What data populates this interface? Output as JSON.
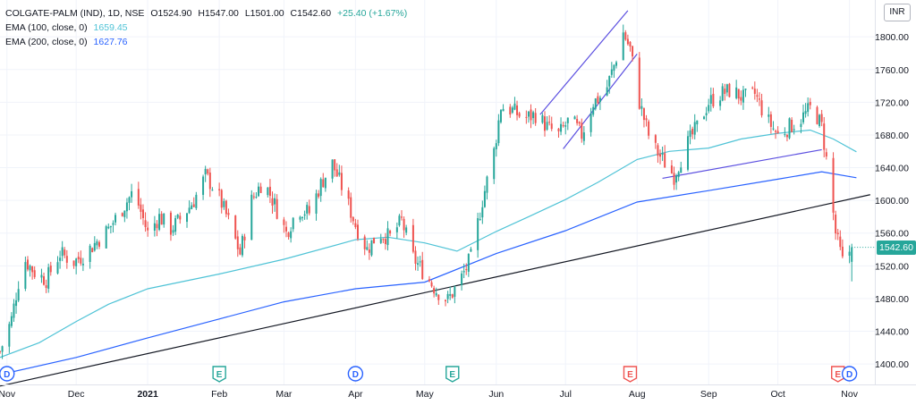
{
  "legend": {
    "symbol": "COLGATE-PALM (IND), 1D, NSE",
    "open": "O1524.90",
    "high": "H1547.00",
    "low": "L1501.00",
    "close": "C1542.60",
    "change": "+25.40 (+1.67%)",
    "ema100_label": "EMA (100, close, 0)",
    "ema100_value": "1659.45",
    "ema200_label": "EMA (200, close, 0)",
    "ema200_value": "1627.76"
  },
  "currency": "INR",
  "last_price": "1542.60",
  "colors": {
    "up": "#26a69a",
    "down": "#ef5350",
    "ema100": "#4fc3d6",
    "ema200": "#2962ff",
    "trendline": "#131722",
    "channel": "#5b4fe0"
  },
  "chart_data": {
    "type": "candlestick",
    "y_ticks": [
      1400,
      1440,
      1480,
      1520,
      1560,
      1600,
      1640,
      1680,
      1720,
      1760,
      1800
    ],
    "y_range": [
      1375,
      1845
    ],
    "x_range": [
      "2020-10-29",
      "2021-11-12"
    ],
    "x_ticks": [
      {
        "date": "2020-11-01",
        "label": "Nov"
      },
      {
        "date": "2020-12-01",
        "label": "Dec"
      },
      {
        "date": "2021-01-01",
        "label": "2021"
      },
      {
        "date": "2021-02-01",
        "label": "Feb"
      },
      {
        "date": "2021-03-01",
        "label": "Mar"
      },
      {
        "date": "2021-04-01",
        "label": "Apr"
      },
      {
        "date": "2021-05-01",
        "label": "May"
      },
      {
        "date": "2021-06-01",
        "label": "Jun"
      },
      {
        "date": "2021-07-01",
        "label": "Jul"
      },
      {
        "date": "2021-08-01",
        "label": "Aug"
      },
      {
        "date": "2021-09-01",
        "label": "Sep"
      },
      {
        "date": "2021-10-01",
        "label": "Oct"
      },
      {
        "date": "2021-11-01",
        "label": "Nov"
      }
    ],
    "close_path": [
      [
        "2020-10-29",
        1415
      ],
      [
        "2020-11-03",
        1455
      ],
      [
        "2020-11-08",
        1530
      ],
      [
        "2020-11-13",
        1512
      ],
      [
        "2020-11-18",
        1503
      ],
      [
        "2020-11-24",
        1535
      ],
      [
        "2020-11-30",
        1525
      ],
      [
        "2020-12-05",
        1535
      ],
      [
        "2020-12-10",
        1550
      ],
      [
        "2020-12-15",
        1565
      ],
      [
        "2020-12-21",
        1590
      ],
      [
        "2020-12-26",
        1612
      ],
      [
        "2021-01-01",
        1560
      ],
      [
        "2021-01-06",
        1580
      ],
      [
        "2021-01-11",
        1565
      ],
      [
        "2021-01-16",
        1580
      ],
      [
        "2021-01-21",
        1600
      ],
      [
        "2021-01-26",
        1630
      ],
      [
        "2021-01-31",
        1610
      ],
      [
        "2021-02-05",
        1575
      ],
      [
        "2021-02-10",
        1535
      ],
      [
        "2021-02-15",
        1600
      ],
      [
        "2021-02-20",
        1625
      ],
      [
        "2021-02-25",
        1595
      ],
      [
        "2021-03-02",
        1560
      ],
      [
        "2021-03-07",
        1590
      ],
      [
        "2021-03-12",
        1585
      ],
      [
        "2021-03-17",
        1620
      ],
      [
        "2021-03-22",
        1645
      ],
      [
        "2021-03-27",
        1610
      ],
      [
        "2021-04-01",
        1570
      ],
      [
        "2021-04-06",
        1540
      ],
      [
        "2021-04-11",
        1560
      ],
      [
        "2021-04-16",
        1555
      ],
      [
        "2021-04-21",
        1575
      ],
      [
        "2021-04-26",
        1530
      ],
      [
        "2021-05-01",
        1510
      ],
      [
        "2021-05-06",
        1490
      ],
      [
        "2021-05-11",
        1478
      ],
      [
        "2021-05-16",
        1500
      ],
      [
        "2021-05-21",
        1530
      ],
      [
        "2021-05-26",
        1600
      ],
      [
        "2021-05-31",
        1660
      ],
      [
        "2021-06-03",
        1715
      ],
      [
        "2021-06-08",
        1710
      ],
      [
        "2021-06-13",
        1700
      ],
      [
        "2021-06-18",
        1705
      ],
      [
        "2021-06-23",
        1690
      ],
      [
        "2021-06-28",
        1680
      ],
      [
        "2021-07-03",
        1700
      ],
      [
        "2021-07-08",
        1680
      ],
      [
        "2021-07-13",
        1720
      ],
      [
        "2021-07-18",
        1730
      ],
      [
        "2021-07-22",
        1765
      ],
      [
        "2021-07-26",
        1805
      ],
      [
        "2021-07-29",
        1785
      ],
      [
        "2021-08-02",
        1720
      ],
      [
        "2021-08-07",
        1670
      ],
      [
        "2021-08-12",
        1650
      ],
      [
        "2021-08-17",
        1630
      ],
      [
        "2021-08-22",
        1665
      ],
      [
        "2021-08-27",
        1690
      ],
      [
        "2021-09-01",
        1720
      ],
      [
        "2021-09-06",
        1730
      ],
      [
        "2021-09-11",
        1735
      ],
      [
        "2021-09-16",
        1725
      ],
      [
        "2021-09-21",
        1730
      ],
      [
        "2021-09-26",
        1700
      ],
      [
        "2021-10-01",
        1680
      ],
      [
        "2021-10-06",
        1690
      ],
      [
        "2021-10-11",
        1700
      ],
      [
        "2021-10-16",
        1715
      ],
      [
        "2021-10-20",
        1690
      ],
      [
        "2021-10-23",
        1630
      ],
      [
        "2021-10-26",
        1560
      ],
      [
        "2021-10-29",
        1525
      ],
      [
        "2021-11-02",
        1542.6
      ]
    ],
    "ema100": [
      [
        "2020-10-29",
        1408
      ],
      [
        "2020-11-15",
        1426
      ],
      [
        "2020-12-01",
        1452
      ],
      [
        "2020-12-15",
        1473
      ],
      [
        "2021-01-01",
        1492
      ],
      [
        "2021-02-01",
        1510
      ],
      [
        "2021-03-01",
        1528
      ],
      [
        "2021-04-01",
        1552
      ],
      [
        "2021-04-15",
        1555
      ],
      [
        "2021-05-01",
        1548
      ],
      [
        "2021-05-15",
        1538
      ],
      [
        "2021-06-01",
        1562
      ],
      [
        "2021-06-15",
        1580
      ],
      [
        "2021-07-01",
        1601
      ],
      [
        "2021-07-15",
        1622
      ],
      [
        "2021-08-01",
        1650
      ],
      [
        "2021-08-15",
        1660
      ],
      [
        "2021-09-01",
        1664
      ],
      [
        "2021-09-15",
        1675
      ],
      [
        "2021-10-01",
        1682
      ],
      [
        "2021-10-15",
        1686
      ],
      [
        "2021-10-25",
        1675
      ],
      [
        "2021-11-04",
        1659.45
      ]
    ],
    "ema200": [
      [
        "2020-10-29",
        1387
      ],
      [
        "2020-12-01",
        1408
      ],
      [
        "2021-01-01",
        1432
      ],
      [
        "2021-02-01",
        1455
      ],
      [
        "2021-03-01",
        1476
      ],
      [
        "2021-04-01",
        1492
      ],
      [
        "2021-05-01",
        1500
      ],
      [
        "2021-06-01",
        1535
      ],
      [
        "2021-07-01",
        1563
      ],
      [
        "2021-08-01",
        1598
      ],
      [
        "2021-09-01",
        1612
      ],
      [
        "2021-10-01",
        1626
      ],
      [
        "2021-10-20",
        1635
      ],
      [
        "2021-11-04",
        1627.76
      ]
    ],
    "drawings": [
      {
        "name": "long-term-trendline",
        "color": "#131722",
        "points": [
          [
            "2020-10-29",
            1373
          ],
          [
            "2021-11-10",
            1607
          ]
        ]
      },
      {
        "name": "channel-upper",
        "color": "#5b4fe0",
        "points": [
          [
            "2021-06-20",
            1705
          ],
          [
            "2021-07-28",
            1832
          ]
        ]
      },
      {
        "name": "channel-lower",
        "color": "#5b4fe0",
        "points": [
          [
            "2021-06-30",
            1663
          ],
          [
            "2021-08-01",
            1779
          ]
        ]
      },
      {
        "name": "support-line",
        "color": "#5b4fe0",
        "points": [
          [
            "2021-08-12",
            1627
          ],
          [
            "2021-10-20",
            1662
          ]
        ]
      }
    ],
    "event_markers": [
      {
        "date": "2020-11-01",
        "label": "D",
        "color": "#2962ff"
      },
      {
        "date": "2021-02-01",
        "label": "E",
        "color": "#26a69a"
      },
      {
        "date": "2021-04-01",
        "label": "D",
        "color": "#2962ff"
      },
      {
        "date": "2021-05-13",
        "label": "E",
        "color": "#26a69a"
      },
      {
        "date": "2021-07-29",
        "label": "E",
        "color": "#ef5350"
      },
      {
        "date": "2021-10-27",
        "label": "E",
        "color": "#ef5350"
      },
      {
        "date": "2021-11-01",
        "label": "D",
        "color": "#2962ff"
      }
    ]
  }
}
